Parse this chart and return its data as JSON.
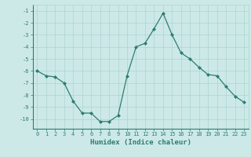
{
  "x": [
    0,
    1,
    2,
    3,
    4,
    5,
    6,
    7,
    8,
    9,
    10,
    11,
    12,
    13,
    14,
    15,
    16,
    17,
    18,
    19,
    20,
    21,
    22,
    23
  ],
  "y": [
    -6.0,
    -6.4,
    -6.5,
    -7.0,
    -8.5,
    -9.5,
    -9.5,
    -10.2,
    -10.2,
    -9.7,
    -6.4,
    -4.0,
    -3.7,
    -2.5,
    -1.2,
    -3.0,
    -4.5,
    -5.0,
    -5.7,
    -6.3,
    -6.4,
    -7.3,
    -8.1,
    -8.6
  ],
  "xlabel": "Humidex (Indice chaleur)",
  "xlim": [
    -0.5,
    23.5
  ],
  "ylim": [
    -10.8,
    -0.5
  ],
  "yticks": [
    -1,
    -2,
    -3,
    -4,
    -5,
    -6,
    -7,
    -8,
    -9,
    -10
  ],
  "xticks": [
    0,
    1,
    2,
    3,
    4,
    5,
    6,
    7,
    8,
    9,
    10,
    11,
    12,
    13,
    14,
    15,
    16,
    17,
    18,
    19,
    20,
    21,
    22,
    23
  ],
  "line_color": "#2e7d6e",
  "marker": "D",
  "marker_size": 2.0,
  "line_width": 0.9,
  "bg_color": "#cce9e7",
  "grid_color": "#add4d1",
  "tick_color": "#2e7d6e",
  "label_color": "#2e7d6e"
}
